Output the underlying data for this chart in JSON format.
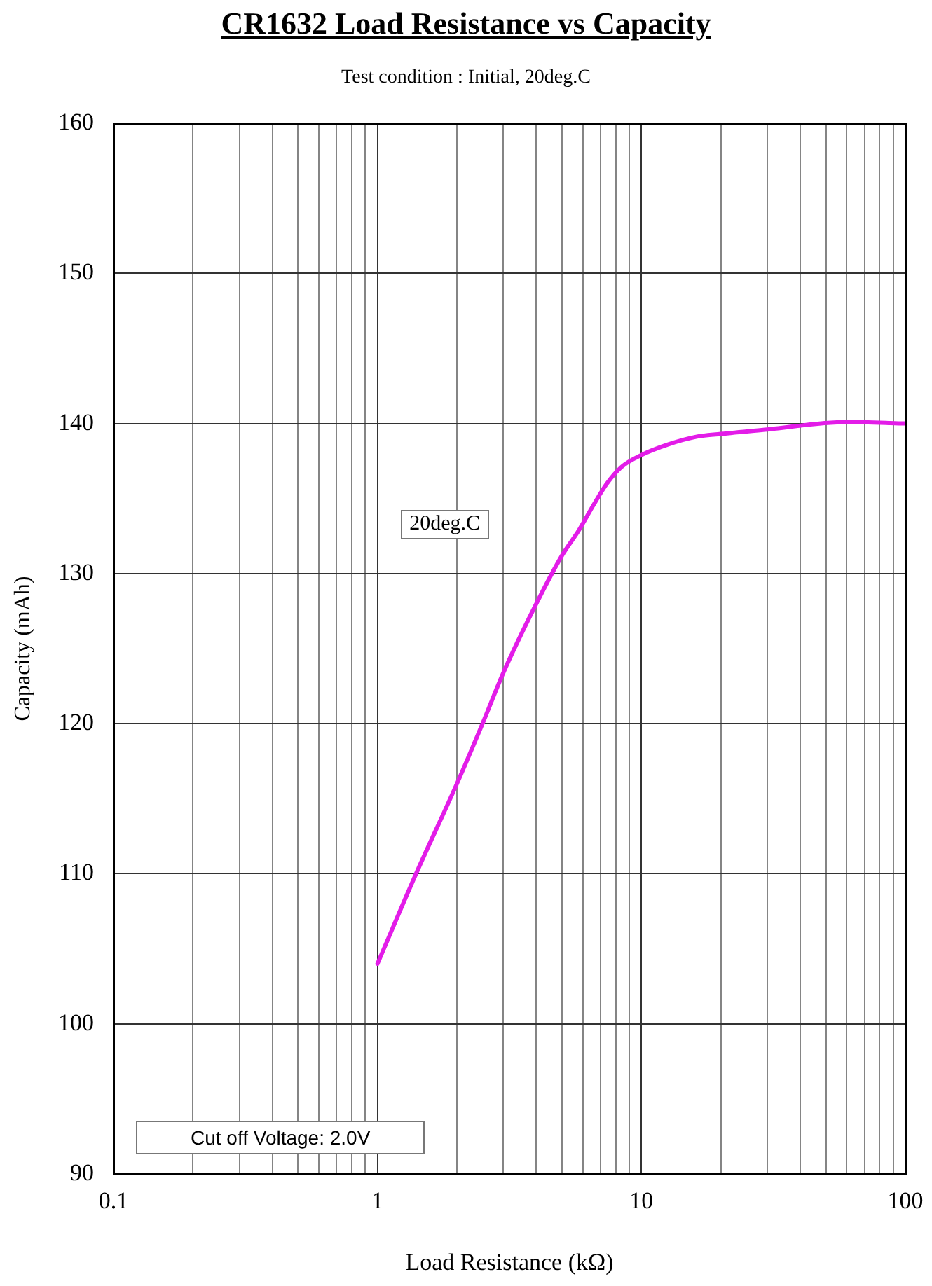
{
  "chart_data": {
    "type": "line",
    "title": "CR1632 Load Resistance vs Capacity",
    "subtitle": "Test condition : Initial, 20deg.C",
    "xlabel": "Load Resistance (kΩ)",
    "ylabel": "Capacity (mAh)",
    "annotations": [
      "Cut off Voltage: 2.0V"
    ],
    "x": [
      1,
      1.4,
      2,
      2.5,
      3,
      4,
      5,
      5.8,
      6.6,
      7.4,
      8.4,
      10,
      12.6,
      16,
      20,
      30,
      60,
      100
    ],
    "series": [
      {
        "name": "20deg.C",
        "color": "#e31ce8",
        "values": [
          104,
          110,
          116,
          120,
          123.4,
          128,
          131.2,
          132.9,
          134.6,
          136,
          137.1,
          137.9,
          138.6,
          139.1,
          139.3,
          139.6,
          140.1,
          140
        ]
      }
    ],
    "xlim": [
      0.1,
      100
    ],
    "ylim": [
      90,
      160
    ],
    "xticks": [
      0.1,
      {
        "value": 0.2,
        "label": null
      },
      {
        "value": 0.3,
        "label": null
      },
      {
        "value": 0.4,
        "label": null
      },
      {
        "value": 0.5,
        "label": null
      },
      {
        "value": 0.6,
        "label": null
      },
      {
        "value": 0.7,
        "label": null
      },
      {
        "value": 0.8,
        "label": null
      },
      {
        "value": 0.9,
        "label": null
      },
      1,
      {
        "value": 2,
        "label": null
      },
      {
        "value": 3,
        "label": null
      },
      {
        "value": 4,
        "label": null
      },
      {
        "value": 5,
        "label": null
      },
      {
        "value": 6,
        "label": null
      },
      {
        "value": 7,
        "label": null
      },
      {
        "value": 8,
        "label": null
      },
      {
        "value": 9,
        "label": null
      },
      10,
      {
        "value": 20,
        "label": null
      },
      {
        "value": 30,
        "label": null
      },
      {
        "value": 40,
        "label": null
      },
      {
        "value": 50,
        "label": null
      },
      {
        "value": 60,
        "label": null
      },
      {
        "value": 70,
        "label": null
      },
      {
        "value": 80,
        "label": null
      },
      {
        "value": 90,
        "label": null
      },
      100
    ],
    "yticks": [
      90,
      100,
      110,
      120,
      130,
      140,
      150,
      160
    ],
    "log": "x",
    "grid": true,
    "legend": false,
    "marker": "none"
  }
}
